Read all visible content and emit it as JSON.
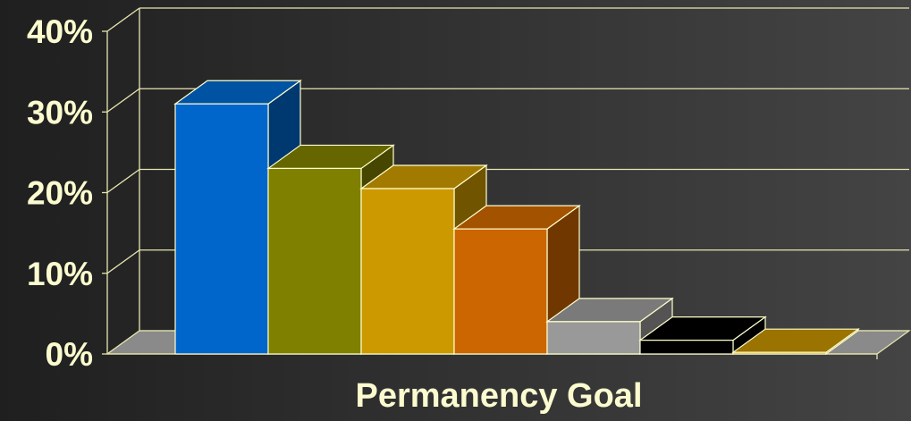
{
  "chart_data": {
    "type": "bar",
    "categories": [
      "",
      "",
      "",
      "",
      "",
      "",
      ""
    ],
    "values": [
      31,
      23,
      20.5,
      15.5,
      4,
      1.7,
      0.2
    ],
    "colors": [
      "#0066cc",
      "#808000",
      "#cc9900",
      "#cc6600",
      "#999999",
      "#000000",
      "#c09000"
    ],
    "ylim": [
      0,
      40
    ],
    "yticks": [
      0,
      10,
      20,
      30,
      40
    ],
    "ytick_labels": [
      "0%",
      "10%",
      "20%",
      "30%",
      "40%"
    ],
    "xlabel": "Permanency Goal",
    "ylabel": "",
    "title": "",
    "grid": true,
    "legend": "none",
    "style": "3d",
    "palette": {
      "background_dark": "#1f1f1f",
      "background_light": "#444444",
      "text": "#fbfbcf",
      "grid": "#e8e6b0",
      "floor": "#8a8a8a",
      "bar_outline": "#ffffcc"
    }
  }
}
